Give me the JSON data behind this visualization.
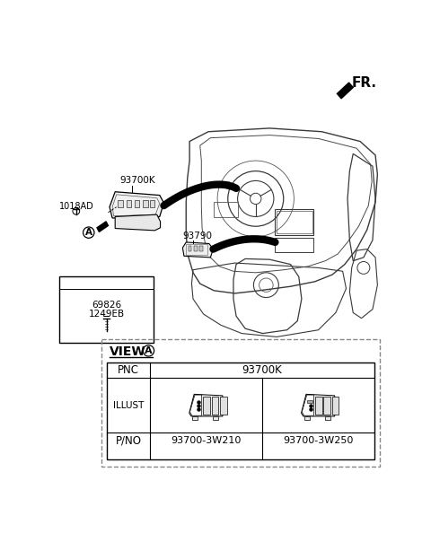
{
  "bg_color": "#ffffff",
  "fr_label": "FR.",
  "pnc_label": "PNC",
  "pnc_value": "93700K",
  "illust_label": "ILLUST",
  "pno_label": "P/NO",
  "pno_values": [
    "93700-3W210",
    "93700-3W250"
  ],
  "label_93700K": "93700K",
  "label_1018AD": "1018AD",
  "label_93790": "93790",
  "label_69826": "69826",
  "label_1249EB": "1249EB",
  "view_circle": "A"
}
